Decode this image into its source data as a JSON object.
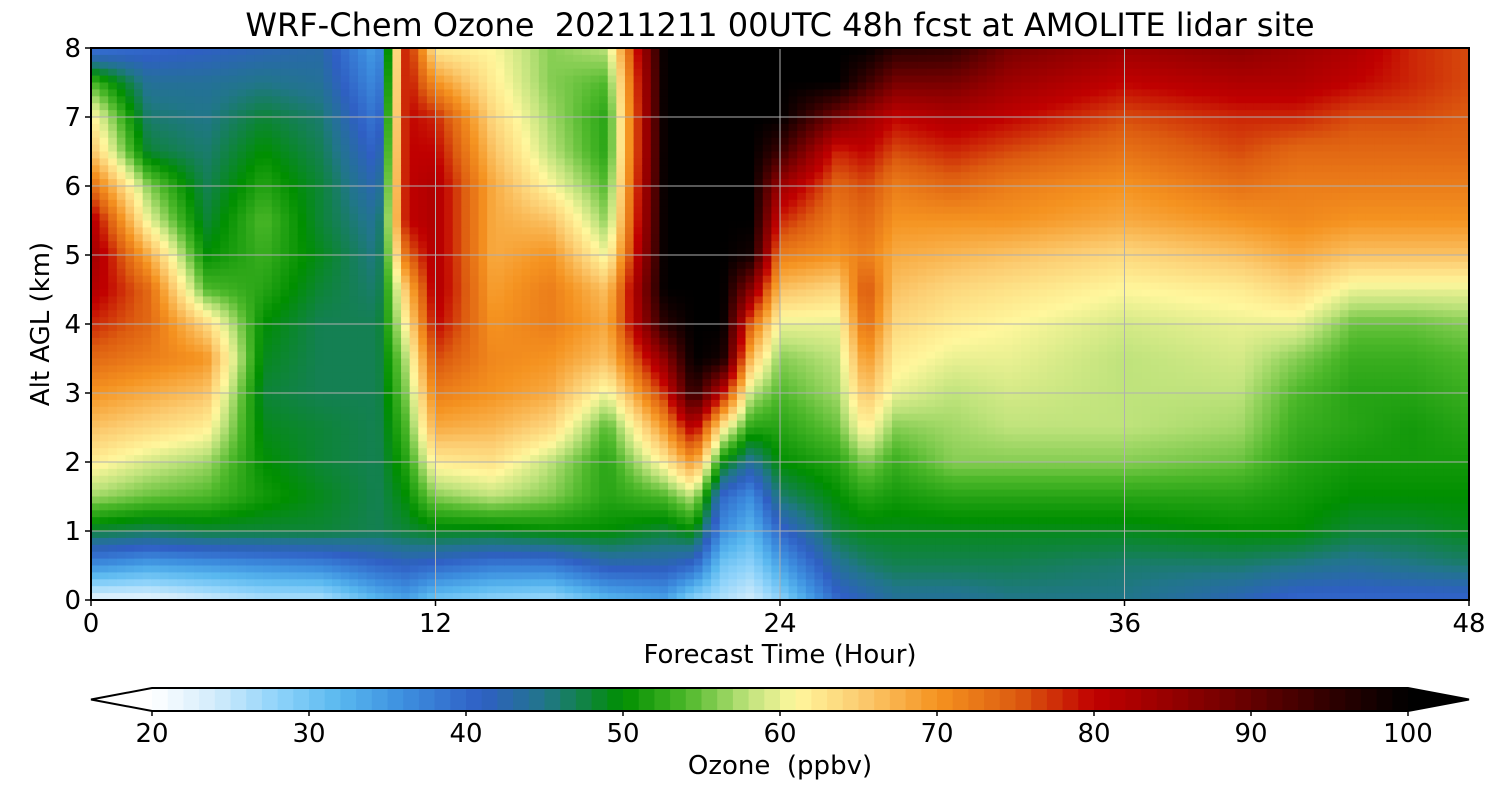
{
  "chart_data": {
    "type": "heatmap",
    "title": "WRF-Chem Ozone  20211211 00UTC 48h fcst at AMOLITE lidar site",
    "xlabel": "Forecast Time (Hour)",
    "ylabel": "Alt AGL (km)",
    "xlim": [
      0,
      48
    ],
    "ylim": [
      0,
      8
    ],
    "x_ticks": [
      "0",
      "12",
      "24",
      "36",
      "48"
    ],
    "y_ticks": [
      "0",
      "1",
      "2",
      "3",
      "4",
      "5",
      "6",
      "7",
      "8"
    ],
    "grid": true,
    "colorbar": {
      "label": "Ozone  (ppbv)",
      "range": [
        20,
        100
      ],
      "ticks": [
        "20",
        "30",
        "40",
        "50",
        "60",
        "70",
        "80",
        "90",
        "100"
      ],
      "extend": "both",
      "colors": [
        {
          "value": 20,
          "color": "#ffffff"
        },
        {
          "value": 24,
          "color": "#d2ecfb"
        },
        {
          "value": 28,
          "color": "#8fd3fa"
        },
        {
          "value": 32,
          "color": "#58b7ef"
        },
        {
          "value": 36,
          "color": "#3d8fdf"
        },
        {
          "value": 41,
          "color": "#2f5fc4"
        },
        {
          "value": 45,
          "color": "#21768a"
        },
        {
          "value": 50,
          "color": "#008f00"
        },
        {
          "value": 54,
          "color": "#4db82a"
        },
        {
          "value": 58,
          "color": "#bfe37c"
        },
        {
          "value": 61,
          "color": "#fff79d"
        },
        {
          "value": 65,
          "color": "#fccd72"
        },
        {
          "value": 70,
          "color": "#f59320"
        },
        {
          "value": 75,
          "color": "#dd5d10"
        },
        {
          "value": 80,
          "color": "#c00000"
        },
        {
          "value": 85,
          "color": "#950000"
        },
        {
          "value": 90,
          "color": "#640000"
        },
        {
          "value": 95,
          "color": "#300000"
        },
        {
          "value": 100,
          "color": "#000000"
        }
      ]
    },
    "altitudes_km": [
      0,
      0.5,
      1,
      1.5,
      2,
      2.5,
      3,
      3.5,
      4,
      4.5,
      5,
      5.5,
      6,
      6.5,
      7,
      7.5,
      8
    ],
    "times_h": [
      0,
      2,
      4,
      6,
      8,
      10,
      11,
      12,
      14,
      16,
      18,
      20,
      21,
      22,
      23,
      24,
      26,
      27,
      28,
      30,
      32,
      36,
      40,
      42,
      44,
      46,
      48
    ],
    "ozone_ppbv": [
      [
        22,
        36,
        48,
        57,
        62,
        66,
        70,
        74,
        78,
        82,
        84,
        82,
        74,
        66,
        62,
        54,
        38
      ],
      [
        22,
        34,
        47,
        55,
        59,
        64,
        68,
        72,
        74,
        74,
        68,
        60,
        56,
        48,
        46,
        44,
        40
      ],
      [
        24,
        35,
        48,
        54,
        57,
        62,
        66,
        70,
        64,
        54,
        50,
        48,
        47,
        46,
        45,
        44,
        41
      ],
      [
        26,
        36,
        48,
        51,
        50,
        49,
        48,
        49,
        50,
        52,
        53,
        54,
        52,
        50,
        48,
        45,
        42
      ],
      [
        26,
        37,
        48,
        49,
        48,
        48,
        47,
        47,
        47,
        48,
        49,
        48,
        48,
        47,
        46,
        44,
        43
      ],
      [
        32,
        40,
        47,
        47,
        47,
        47,
        47,
        47,
        47,
        46,
        45,
        44,
        42,
        40,
        38,
        36,
        34
      ],
      [
        34,
        41,
        48,
        50,
        52,
        54,
        56,
        58,
        62,
        66,
        74,
        80,
        80,
        80,
        80,
        80,
        80
      ],
      [
        30,
        40,
        49,
        56,
        62,
        68,
        72,
        76,
        80,
        82,
        82,
        82,
        82,
        80,
        78,
        70,
        62
      ],
      [
        28,
        38,
        49,
        58,
        63,
        67,
        70,
        71,
        70,
        69,
        68,
        68,
        68,
        66,
        64,
        62,
        61
      ],
      [
        27,
        38,
        50,
        56,
        58,
        64,
        68,
        70,
        72,
        72,
        70,
        66,
        61,
        58,
        57,
        56,
        56
      ],
      [
        32,
        42,
        50,
        52,
        52,
        54,
        60,
        66,
        68,
        66,
        60,
        56,
        54,
        52,
        52,
        54,
        58
      ],
      [
        34,
        42,
        48,
        54,
        62,
        70,
        78,
        86,
        96,
        100,
        100,
        100,
        100,
        100,
        100,
        100,
        100
      ],
      [
        28,
        40,
        50,
        58,
        70,
        82,
        96,
        100,
        100,
        100,
        100,
        100,
        100,
        100,
        100,
        100,
        100
      ],
      [
        26,
        30,
        36,
        40,
        50,
        62,
        80,
        98,
        100,
        100,
        100,
        100,
        100,
        100,
        100,
        100,
        100
      ],
      [
        24,
        28,
        32,
        36,
        44,
        52,
        58,
        66,
        74,
        86,
        98,
        100,
        100,
        100,
        100,
        100,
        100
      ],
      [
        28,
        34,
        40,
        46,
        50,
        52,
        54,
        56,
        60,
        66,
        72,
        78,
        84,
        94,
        100,
        100,
        100
      ],
      [
        40,
        44,
        48,
        50,
        52,
        55,
        57,
        58,
        60,
        64,
        70,
        72,
        74,
        78,
        88,
        100,
        100
      ],
      [
        42,
        46,
        49,
        52,
        56,
        62,
        66,
        70,
        74,
        76,
        72,
        74,
        76,
        80,
        84,
        94,
        100
      ],
      [
        44,
        47,
        49,
        51,
        53,
        56,
        60,
        62,
        64,
        66,
        68,
        70,
        72,
        76,
        80,
        88,
        96
      ],
      [
        44,
        47,
        49,
        52,
        56,
        57,
        58,
        60,
        62,
        64,
        67,
        70,
        74,
        78,
        82,
        88,
        95
      ],
      [
        45,
        47,
        49,
        52,
        56,
        58,
        59,
        60,
        61,
        63,
        66,
        70,
        72,
        76,
        80,
        84,
        88
      ],
      [
        45,
        46,
        49,
        52,
        56,
        58,
        58,
        58,
        59,
        61,
        64,
        68,
        70,
        73,
        76,
        80,
        84
      ],
      [
        42,
        46,
        50,
        52,
        55,
        57,
        58,
        59,
        60,
        62,
        66,
        70,
        73,
        76,
        78,
        82,
        86
      ],
      [
        40,
        45,
        50,
        51,
        52,
        53,
        54,
        56,
        60,
        64,
        68,
        71,
        72,
        74,
        78,
        82,
        84
      ],
      [
        40,
        44,
        48,
        50,
        51,
        52,
        52,
        53,
        55,
        60,
        66,
        70,
        72,
        74,
        76,
        80,
        82
      ],
      [
        40,
        45,
        48,
        50,
        51,
        51,
        52,
        53,
        55,
        60,
        66,
        70,
        72,
        74,
        76,
        78,
        78
      ],
      [
        40,
        46,
        49,
        50,
        51,
        52,
        53,
        54,
        56,
        60,
        66,
        70,
        72,
        74,
        75,
        76,
        76
      ]
    ]
  }
}
